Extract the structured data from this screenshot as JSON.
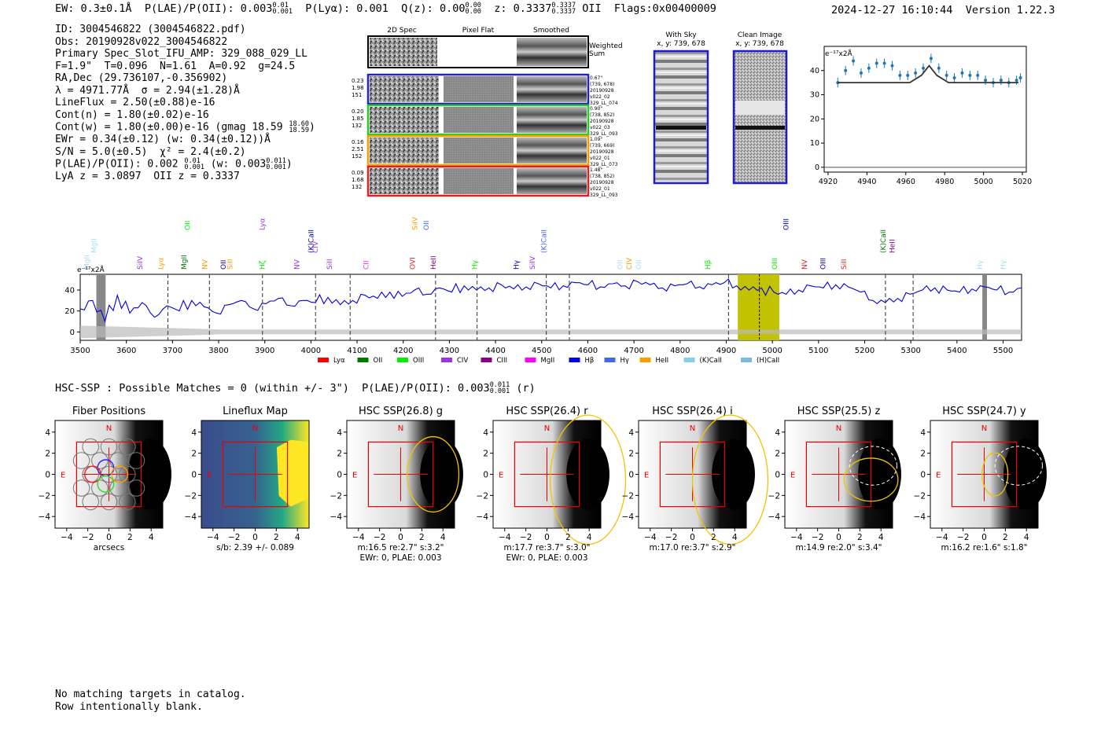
{
  "header": {
    "ew": "EW: 0.3±0.1Å",
    "plae_label": "P(LAE)/P(OII): 0.003",
    "plae_hi": "0.01",
    "plae_lo": "0.001",
    "plya": "P(Lyα): 0.001",
    "qz_label": "Q(z): 0.00",
    "qz_hi": "0.00",
    "qz_lo": "0.00",
    "z_label": "z: 0.3337",
    "z_hi": "0.3337",
    "z_lo": "0.3337",
    "z_line": "OII",
    "flags": "Flags:0x00400009",
    "timestamp": "2024-12-27 16:10:44",
    "version": "Version 1.22.3"
  },
  "info": {
    "id": "ID: 3004546822 (3004546822.pdf)",
    "obs": "Obs: 20190928v022_3004546822",
    "primary": "Primary Spec_Slot_IFU_AMP: 329_088_029_LL",
    "fit": "F=1.9\"  T=0.096  N=1.61  A=0.92  g=24.5",
    "radec": "RA,Dec (29.736107,-0.356902)",
    "lambda": "λ = 4971.77Å  σ = 2.94(±1.28)Å",
    "lineflux": "LineFlux = 2.50(±0.88)e-16",
    "contn": "Cont(n) = 1.80(±0.02)e-16",
    "contw_label": "Cont(w) = 1.80(±0.00)e-16 (gmag 18.59",
    "contw_hi": "18.60",
    "contw_lo": "18.59",
    "contw_close": ")",
    "ewr": "EWr = 0.34(±0.12) (w: 0.34(±0.12))Å",
    "sn": "S/N = 5.0(±0.5)  χ² = 2.4(±0.2)",
    "plae_label": "P(LAE)/P(OII): 0.002",
    "plae_hi": "0.01",
    "plae_lo": "0.001",
    "plae_w_label": "(w: 0.003",
    "plae_w_hi": "0.011",
    "plae_w_lo": "0.001",
    "plae_w_close": ")",
    "lya_oii": "LyA z = 3.0897  OII z = 0.3337"
  },
  "cutouts": {
    "col_headers": [
      "2D Spec",
      "Pixel Flat",
      "Smoothed"
    ],
    "weighted_sum": [
      "Weighted",
      "Sum"
    ],
    "rows": [
      {
        "left": [
          "0.23",
          "1.98",
          "151"
        ],
        "right": [
          "0.67\"",
          "(739, 678)",
          "20190928",
          "v022_02",
          "329_LL_074"
        ],
        "color": "#2222cc"
      },
      {
        "left": [
          "0.20",
          "1.85",
          "132"
        ],
        "right": [
          "0.90\"",
          "(738, 852)",
          "20190928",
          "v022_03",
          "329_LL_093"
        ],
        "color": "#22cc22"
      },
      {
        "left": [
          "0.16",
          "2.51",
          "152"
        ],
        "right": [
          "1.09\"",
          "(739, 669)",
          "20190928",
          "v022_01",
          "329_LL_073"
        ],
        "color": "#ff9900"
      },
      {
        "left": [
          "0.09",
          "1.68",
          "132"
        ],
        "right": [
          "1.48\"",
          "(738, 852)",
          "20190928",
          "v022_01",
          "329_LL_093"
        ],
        "color": "#dd2222"
      }
    ]
  },
  "sky_panels": [
    {
      "title": "With Sky",
      "coords": "x, y: 739, 678"
    },
    {
      "title": "Clean Image",
      "coords": "x, y: 739, 678"
    }
  ],
  "zoom_chart_labels": {
    "unit": "e⁻¹⁷x2Å"
  },
  "spectrum_labels": {
    "unit": "e⁻¹⁷x2Å"
  },
  "legend": [
    {
      "name": "Lyα",
      "color": "#ff0000"
    },
    {
      "name": "OII",
      "color": "#007700"
    },
    {
      "name": "OIII",
      "color": "#00ee00"
    },
    {
      "name": "CIV",
      "color": "#9933ee"
    },
    {
      "name": "CIII",
      "color": "#880088"
    },
    {
      "name": "MgII",
      "color": "#ff00ff"
    },
    {
      "name": "Hβ",
      "color": "#0000ff"
    },
    {
      "name": "Hγ",
      "color": "#4466ee"
    },
    {
      "name": "HeII",
      "color": "#ff9900"
    },
    {
      "name": "(K)CaII",
      "color": "#88ccee"
    },
    {
      "name": "(H)CaII",
      "color": "#77bbdd"
    }
  ],
  "line_labels": [
    {
      "name": "MgII",
      "wl": 3520,
      "color": "#aaddee",
      "row": 0
    },
    {
      "name": "MgII",
      "wl": 3535,
      "color": "#aaddee",
      "row": 1
    },
    {
      "name": "SiIV",
      "wl": 3635,
      "color": "#9933ee",
      "row": 0
    },
    {
      "name": "Lyα",
      "wl": 3680,
      "color": "#ff9900",
      "row": 0
    },
    {
      "name": "MgII",
      "wl": 3730,
      "color": "#007700",
      "row": 0
    },
    {
      "name": "OII",
      "wl": 3738,
      "color": "#00ee00",
      "row": 2
    },
    {
      "name": "NV",
      "wl": 3775,
      "color": "#ff9900",
      "row": 0
    },
    {
      "name": "OII",
      "wl": 3815,
      "color": "#0000aa",
      "row": 0
    },
    {
      "name": "SiII",
      "wl": 3830,
      "color": "#ff9900",
      "row": 0
    },
    {
      "name": "Hζ",
      "wl": 3900,
      "color": "#00ee00",
      "row": 0
    },
    {
      "name": "Lyα",
      "wl": 3900,
      "color": "#9933ee",
      "row": 2
    },
    {
      "name": "NV",
      "wl": 3975,
      "color": "#9933ee",
      "row": 0
    },
    {
      "name": "(K)CaII",
      "wl": 4005,
      "color": "#0000aa",
      "row": 1
    },
    {
      "name": "CIV",
      "wl": 4015,
      "color": "#9933ee",
      "row": 1
    },
    {
      "name": "SiII",
      "wl": 4045,
      "color": "#9933ee",
      "row": 0
    },
    {
      "name": "CII",
      "wl": 4125,
      "color": "#dd33dd",
      "row": 0
    },
    {
      "name": "OVI",
      "wl": 4225,
      "color": "#dd2222",
      "row": 0
    },
    {
      "name": "SiIV",
      "wl": 4230,
      "color": "#ff9900",
      "row": 2
    },
    {
      "name": "OII",
      "wl": 4255,
      "color": "#4466ee",
      "row": 2
    },
    {
      "name": "HeII",
      "wl": 4270,
      "color": "#880088",
      "row": 0
    },
    {
      "name": "Hγ",
      "wl": 4360,
      "color": "#00ee00",
      "row": 0
    },
    {
      "name": "Hγ",
      "wl": 4450,
      "color": "#0000aa",
      "row": 0
    },
    {
      "name": "SiIV",
      "wl": 4485,
      "color": "#9933ee",
      "row": 0
    },
    {
      "name": "(K)CaII",
      "wl": 4510,
      "color": "#4466ee",
      "row": 1
    },
    {
      "name": "OII",
      "wl": 4675,
      "color": "#aaddee",
      "row": 0
    },
    {
      "name": "CIV",
      "wl": 4695,
      "color": "#ff9900",
      "row": 0
    },
    {
      "name": "OII",
      "wl": 4715,
      "color": "#aaddee",
      "row": 0
    },
    {
      "name": "Hβ",
      "wl": 4865,
      "color": "#00ee00",
      "row": 0
    },
    {
      "name": "OIII",
      "wl": 5010,
      "color": "#00ee00",
      "row": 0
    },
    {
      "name": "OIII",
      "wl": 5035,
      "color": "#0000aa",
      "row": 2
    },
    {
      "name": "NV",
      "wl": 5075,
      "color": "#dd2222",
      "row": 0
    },
    {
      "name": "OIII",
      "wl": 5115,
      "color": "#0000aa",
      "row": 0
    },
    {
      "name": "SiII",
      "wl": 5160,
      "color": "#dd2222",
      "row": 0
    },
    {
      "name": "(K)CaII",
      "wl": 5245,
      "color": "#007700",
      "row": 1
    },
    {
      "name": "HeII",
      "wl": 5265,
      "color": "#880088",
      "row": 1
    },
    {
      "name": "Hγ",
      "wl": 5455,
      "color": "#aaddee",
      "row": 0
    },
    {
      "name": "Hγ",
      "wl": 5505,
      "color": "#aaddee",
      "row": 0
    }
  ],
  "chart_data": [
    {
      "type": "scatter",
      "name": "emission line zoom",
      "x": [
        4925,
        4929,
        4933,
        4937,
        4941,
        4945,
        4949,
        4953,
        4957,
        4961,
        4965,
        4969,
        4973,
        4977,
        4981,
        4985,
        4989,
        4993,
        4997,
        5001,
        5005,
        5009,
        5013,
        5017,
        5019
      ],
      "y": [
        35,
        40,
        44,
        39,
        41,
        43,
        43,
        42,
        38,
        38,
        39,
        41,
        45,
        41,
        38,
        37,
        39,
        38,
        38,
        36,
        35,
        36,
        35,
        36,
        37
      ],
      "model_x": [
        4925,
        4950,
        4962,
        4968,
        4972,
        4976,
        4982,
        5000,
        5018
      ],
      "model_y": [
        35,
        35,
        35,
        38,
        42,
        38,
        35,
        35,
        35
      ],
      "xlim": [
        4918,
        5022
      ],
      "ylim": [
        -2,
        50
      ],
      "xticks": [
        4920,
        4940,
        4960,
        4980,
        5000,
        5020
      ],
      "yticks": [
        0,
        10,
        20,
        30,
        40
      ],
      "ylabel": "e⁻¹⁷x2Å"
    },
    {
      "type": "line",
      "name": "full spectrum",
      "x_start": 3500,
      "x_end": 5540,
      "flux": [
        22,
        30,
        10,
        35,
        18,
        28,
        14,
        25,
        20,
        30,
        24,
        18,
        26,
        30,
        22,
        27,
        32,
        25,
        30,
        28,
        33,
        26,
        30,
        35,
        32,
        38,
        34,
        40,
        36,
        42,
        38,
        44,
        40,
        42,
        45,
        41,
        43,
        46,
        42,
        44,
        47,
        45,
        43,
        46,
        44,
        48,
        45,
        42,
        44,
        46,
        43,
        45,
        47,
        44,
        40,
        42,
        38,
        36,
        40,
        44,
        42,
        45,
        43,
        38,
        30,
        28,
        32,
        36,
        40,
        42,
        40,
        38,
        41,
        43,
        40,
        38,
        42
      ],
      "xlim": [
        3500,
        5540
      ],
      "ylim": [
        -8,
        55
      ],
      "xticks": [
        3500,
        3600,
        3700,
        3800,
        3900,
        4000,
        4100,
        4200,
        4300,
        4400,
        4500,
        4600,
        4700,
        4800,
        4900,
        5000,
        5100,
        5200,
        5300,
        5400,
        5500
      ],
      "yticks": [
        0,
        20,
        40
      ],
      "highlight_band": [
        4925,
        5015
      ],
      "center_line": 4971.77,
      "masked_bands": [
        [
          3535,
          3555
        ],
        [
          5455,
          5465
        ]
      ],
      "dashed_lines": [
        3690,
        3780,
        3895,
        4010,
        4085,
        4270,
        4360,
        4510,
        4560,
        4905,
        5245,
        5305
      ]
    }
  ],
  "hsc": {
    "title_label": "HSC-SSP : Possible Matches = 0 (within +/- 3\")  P(LAE)/P(OII): 0.003",
    "plae_hi": "0.011",
    "plae_lo": "0.001",
    "band": "(r)",
    "axis_ticks": [
      "−4",
      "−2",
      "0",
      "2",
      "4"
    ],
    "panels": [
      {
        "title": "Fiber Positions",
        "caption1": "arcsecs",
        "caption2": ""
      },
      {
        "title": "Lineflux Map",
        "caption1": "s/b: 2.39 +/- 0.089",
        "caption2": ""
      },
      {
        "title": "HSC SSP(26.8) g",
        "caption1": "m:16.5  re:2.7\"  s:3.2\"",
        "caption2": "EWr: 0, PLAE: 0.003"
      },
      {
        "title": "HSC SSP(26.4) r",
        "caption1": "m:17.7  re:3.7\"  s:3.0\"",
        "caption2": "EWr: 0, PLAE: 0.003"
      },
      {
        "title": "HSC SSP(26.4) i",
        "caption1": "m:17.0  re:3.7\"  s:2.9\"",
        "caption2": ""
      },
      {
        "title": "HSC SSP(25.5) z",
        "caption1": "m:14.9  re:2.0\"  s:3.4\"",
        "caption2": ""
      },
      {
        "title": "HSC SSP(24.7) y",
        "caption1": "m:16.2  re:1.6\"  s:1.8\"",
        "caption2": ""
      }
    ],
    "north_label": "N",
    "east_label": "E"
  },
  "footer": {
    "line1": "No matching targets in catalog.",
    "line2": "Row intentionally blank."
  }
}
